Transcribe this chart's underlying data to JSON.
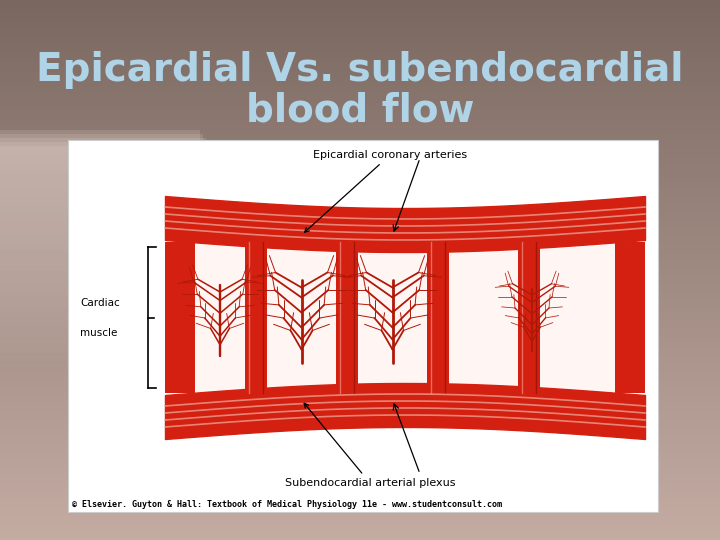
{
  "title_line1": "Epicardial Vs. subendocardial",
  "title_line2": "blood flow",
  "title_color": "#afd4e8",
  "title_fontsize": 28,
  "bg_color_top": "#c4aca3",
  "bg_color_bottom": "#8a7870",
  "image_label_top": "Epicardial coronary arteries",
  "image_label_left1": "Cardiac",
  "image_label_left2": "muscle",
  "image_label_bottom": "Subendocardial arterial plexus",
  "copyright_text": "© Elsevier. Guyton & Hall: Textbook of Medical Physiology 11e - www.studentconsult.com",
  "red_main": "#d42010",
  "red_light": "#e85040",
  "red_dark": "#b01808",
  "pink_stripe": "#f09080",
  "muscle_bg": "#fff5f3",
  "white_box": "#ffffff"
}
